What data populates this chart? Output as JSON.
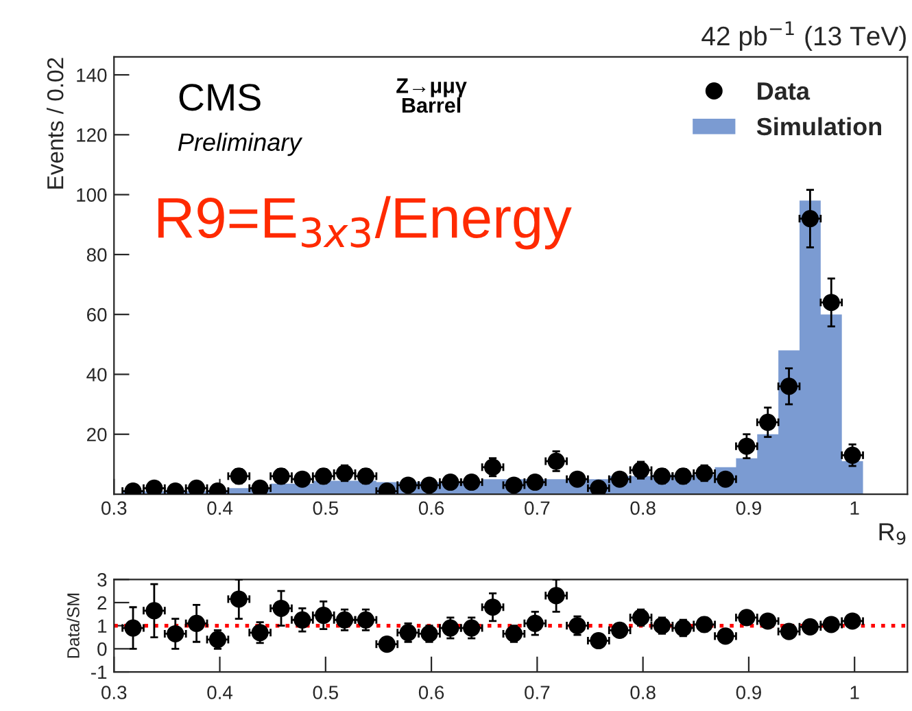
{
  "chart_data": [
    {
      "type": "histogram",
      "title": "42 pb$^{−1}$ (13 TeV)",
      "xlabel": "R$_{9}$",
      "ylabel": "Events / 0.02",
      "xlim": [
        0.3,
        1.05
      ],
      "ylim": [
        0,
        146
      ],
      "xticks": [
        0.3,
        0.4,
        0.5,
        0.6,
        0.7,
        0.8,
        0.9,
        1
      ],
      "yticks": [
        20,
        40,
        60,
        80,
        100,
        120,
        140
      ],
      "legend": "top right",
      "grid": false,
      "annotations": [
        "CMS",
        "Preliminary",
        "Z→μμγ",
        "Barrel",
        "R9=E$_{3x3}$/Energy"
      ],
      "series": [
        {
          "name": "Data",
          "type": "scatter",
          "color": "#000000",
          "marker": "circle",
          "x": [
            0.318,
            0.338,
            0.358,
            0.378,
            0.398,
            0.418,
            0.438,
            0.458,
            0.478,
            0.498,
            0.518,
            0.538,
            0.558,
            0.578,
            0.598,
            0.618,
            0.638,
            0.658,
            0.678,
            0.698,
            0.718,
            0.738,
            0.758,
            0.778,
            0.798,
            0.818,
            0.838,
            0.858,
            0.878,
            0.898,
            0.918,
            0.938,
            0.958,
            0.978,
            0.998
          ],
          "values": [
            1,
            2,
            1,
            2,
            1,
            6,
            2,
            6,
            5,
            6,
            7,
            6,
            1,
            3,
            3,
            4,
            4,
            9,
            3,
            4,
            11,
            5,
            2,
            5,
            8,
            6,
            6,
            7,
            5,
            16,
            24,
            36,
            92,
            64,
            13
          ],
          "errors": [
            1,
            1.4,
            1,
            1.4,
            1,
            2.4,
            1.4,
            2.4,
            2.2,
            2.4,
            2.6,
            2.4,
            1,
            1.7,
            1.7,
            2,
            2,
            3,
            1.7,
            2,
            3.3,
            2.2,
            1.4,
            2.2,
            2.8,
            2.4,
            2.4,
            2.6,
            2.2,
            4,
            4.9,
            6,
            9.6,
            8,
            3.6
          ],
          "xerrors": [
            0.01,
            0.01,
            0.01,
            0.01,
            0.01,
            0.01,
            0.01,
            0.01,
            0.01,
            0.01,
            0.01,
            0.01,
            0.01,
            0.01,
            0.01,
            0.01,
            0.01,
            0.01,
            0.01,
            0.01,
            0.01,
            0.01,
            0.01,
            0.01,
            0.01,
            0.01,
            0.01,
            0.01,
            0.01,
            0.01,
            0.01,
            0.01,
            0.01,
            0.01,
            0.01
          ]
        },
        {
          "name": "Simulation",
          "color": "#7b9bd2",
          "bins": [
            0.308,
            0.328,
            0.348,
            0.368,
            0.388,
            0.408,
            0.428,
            0.448,
            0.468,
            0.488,
            0.508,
            0.528,
            0.548,
            0.568,
            0.588,
            0.608,
            0.628,
            0.648,
            0.668,
            0.688,
            0.708,
            0.728,
            0.748,
            0.768,
            0.788,
            0.808,
            0.828,
            0.848,
            0.868,
            0.888,
            0.908,
            0.928,
            0.948,
            0.968,
            0.988,
            1.008
          ],
          "values": [
            1,
            1,
            1,
            1,
            1,
            2,
            2,
            3.5,
            3.5,
            4.5,
            4.5,
            4.5,
            4,
            4,
            4,
            4,
            4,
            5,
            5,
            5,
            5,
            5,
            5,
            6,
            6,
            6.5,
            6.5,
            6.5,
            9,
            12,
            20,
            48,
            98,
            60,
            11
          ]
        }
      ]
    },
    {
      "type": "scatter",
      "ylabel": "Data/SM",
      "xlim": [
        0.3,
        1.05
      ],
      "ylim": [
        -1,
        3
      ],
      "xticks": [
        0.3,
        0.4,
        0.5,
        0.6,
        0.7,
        0.8,
        0.9,
        1
      ],
      "yticks": [
        -1,
        0,
        1,
        2,
        3
      ],
      "grid": false,
      "ref_lines": [
        {
          "axis": "y",
          "value": 1,
          "color": "#ff0000",
          "line_style": "dotted"
        }
      ],
      "series": [
        {
          "color": "#000000",
          "marker": "circle",
          "x": [
            0.318,
            0.338,
            0.358,
            0.378,
            0.398,
            0.418,
            0.438,
            0.458,
            0.478,
            0.498,
            0.518,
            0.538,
            0.558,
            0.578,
            0.598,
            0.618,
            0.638,
            0.658,
            0.678,
            0.698,
            0.718,
            0.738,
            0.758,
            0.778,
            0.798,
            0.818,
            0.838,
            0.858,
            0.878,
            0.898,
            0.918,
            0.938,
            0.958,
            0.978,
            0.998
          ],
          "values": [
            0.9,
            1.65,
            0.65,
            1.1,
            0.4,
            2.15,
            0.7,
            1.75,
            1.25,
            1.45,
            1.25,
            1.25,
            0.2,
            0.7,
            0.65,
            0.9,
            0.9,
            1.8,
            0.65,
            1.1,
            2.3,
            1.0,
            0.35,
            0.8,
            1.35,
            1.0,
            0.9,
            1.05,
            0.55,
            1.35,
            1.2,
            0.75,
            0.95,
            1.05,
            1.2
          ],
          "errors": [
            0.9,
            1.15,
            0.65,
            0.8,
            0.4,
            0.85,
            0.45,
            0.75,
            0.5,
            0.6,
            0.45,
            0.45,
            0.2,
            0.4,
            0.35,
            0.45,
            0.45,
            0.6,
            0.35,
            0.5,
            0.7,
            0.4,
            0.25,
            0.3,
            0.35,
            0.35,
            0.35,
            0.3,
            0.2,
            0.2,
            0.15,
            0.1,
            0.1,
            0.1,
            0.15
          ],
          "xerrors": [
            0.01,
            0.01,
            0.01,
            0.01,
            0.01,
            0.01,
            0.01,
            0.01,
            0.01,
            0.01,
            0.01,
            0.01,
            0.01,
            0.01,
            0.01,
            0.01,
            0.01,
            0.01,
            0.01,
            0.01,
            0.01,
            0.01,
            0.01,
            0.01,
            0.01,
            0.01,
            0.01,
            0.01,
            0.01,
            0.01,
            0.01,
            0.01,
            0.01,
            0.01,
            0.01
          ]
        }
      ]
    }
  ]
}
